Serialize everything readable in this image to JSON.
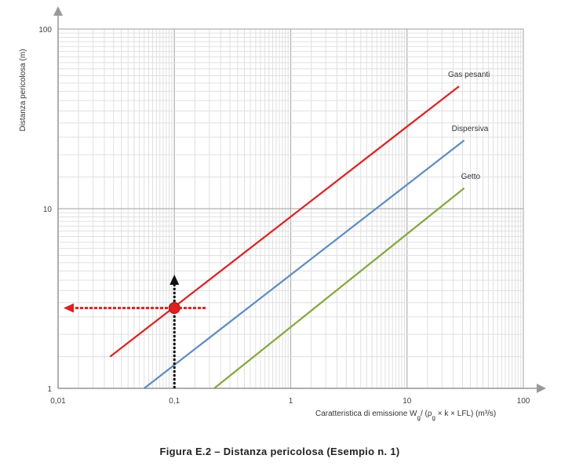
{
  "chart_data": {
    "type": "line",
    "x_scale": "log",
    "y_scale": "log",
    "xlim": [
      0.01,
      100
    ],
    "ylim": [
      1,
      100
    ],
    "grid": true,
    "x_ticks": [
      "0,01",
      "0,1",
      "1",
      "10",
      "100"
    ],
    "y_ticks": [
      "1",
      "10",
      "100"
    ],
    "ylabel": "Distanza pericolosa  (m)",
    "xlabel": "Caratteristica di emissione  Wg/ (ρg × k × LFL)  (m³/s)",
    "series": [
      {
        "name": "Gas pesanti",
        "color": "#e02020",
        "x": [
          0.028,
          28
        ],
        "y": [
          1.5,
          48
        ]
      },
      {
        "name": "Dispersiva",
        "color": "#5b8cc4",
        "x": [
          0.055,
          31
        ],
        "y": [
          1.0,
          24
        ]
      },
      {
        "name": "Getto",
        "color": "#82a83a",
        "x": [
          0.22,
          31
        ],
        "y": [
          1.0,
          13
        ]
      }
    ],
    "example_point": {
      "x": 0.1,
      "y": 2.8,
      "color": "#e02020"
    }
  },
  "caption": "Figura E.2 – Distanza pericolosa (Esempio n. 1)"
}
